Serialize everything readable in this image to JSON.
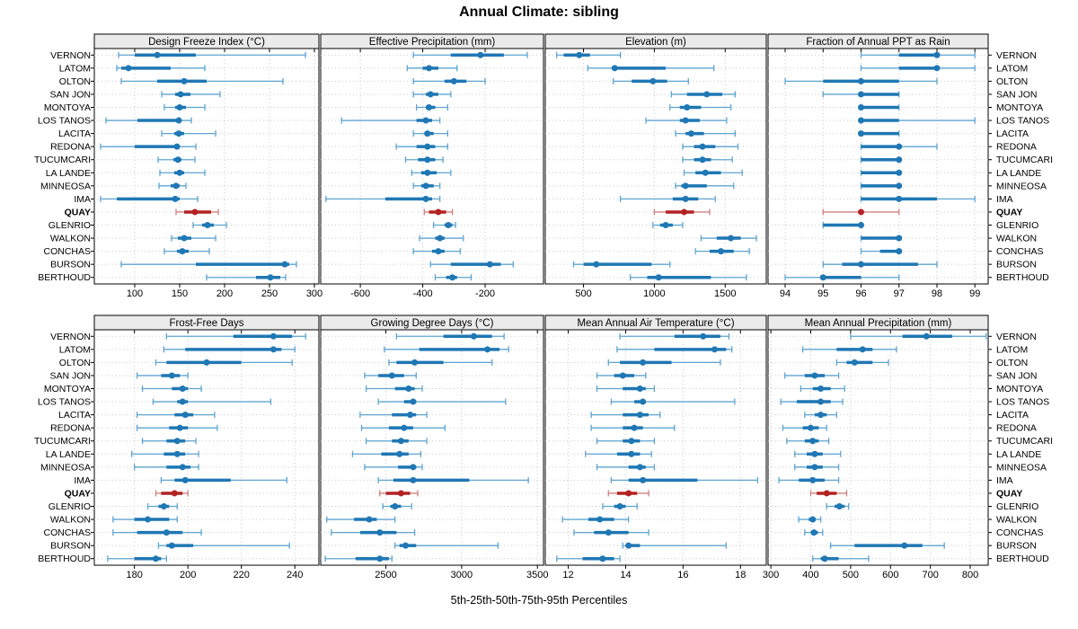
{
  "title": "Annual Climate: sibling",
  "caption": "5th-25th-50th-75th-95th Percentiles",
  "highlight_station": "QUAY",
  "colors": {
    "series": "#1f77b4",
    "series_light": "#5ea4d0",
    "highlight": "#b22222",
    "highlight_light": "#d08080",
    "grid": "#c9c9c9",
    "strip_bg": "#ebebeb",
    "border": "#000000",
    "text": "#000000",
    "background": "#ffffff"
  },
  "chart_data": {
    "type": "dotplot-interval",
    "percentiles": [
      "5th",
      "25th",
      "50th",
      "75th",
      "95th"
    ],
    "legend_position": "none",
    "grid": "dotted",
    "stations": [
      "VERNON",
      "LATOM",
      "OLTON",
      "SAN JON",
      "MONTOYA",
      "LOS TANOS",
      "LACITA",
      "REDONA",
      "TUCUMCARI",
      "LA LANDE",
      "MINNEOSA",
      "IMA",
      "QUAY",
      "GLENRIO",
      "WALKON",
      "CONCHAS",
      "BURSON",
      "BERTHOUD"
    ],
    "panels": [
      {
        "title": "Design Freeze Index (°C)",
        "row": 0,
        "col": 0,
        "xlim": [
          55,
          305
        ],
        "ticks": [
          100,
          150,
          200,
          250,
          300
        ],
        "values": [
          [
            82,
            100,
            125,
            168,
            290
          ],
          [
            80,
            85,
            93,
            140,
            178
          ],
          [
            85,
            125,
            155,
            180,
            265
          ],
          [
            130,
            145,
            151,
            162,
            195
          ],
          [
            133,
            145,
            150,
            157,
            178
          ],
          [
            68,
            103,
            149,
            152,
            163
          ],
          [
            130,
            144,
            149,
            155,
            190
          ],
          [
            62,
            100,
            147,
            150,
            168
          ],
          [
            126,
            143,
            148,
            152,
            167
          ],
          [
            128,
            144,
            150,
            155,
            178
          ],
          [
            127,
            140,
            146,
            150,
            157
          ],
          [
            62,
            80,
            145,
            150,
            170
          ],
          [
            146,
            155,
            167,
            185,
            193
          ],
          [
            165,
            175,
            181,
            188,
            202
          ],
          [
            141,
            148,
            155,
            163,
            190
          ],
          [
            133,
            147,
            153,
            160,
            183
          ],
          [
            85,
            168,
            267,
            272,
            280
          ],
          [
            180,
            235,
            251,
            262,
            268
          ]
        ]
      },
      {
        "title": "Effective Precipitation (mm)",
        "row": 0,
        "col": 1,
        "xlim": [
          -727,
          -13
        ],
        "ticks": [
          -600,
          -400,
          -200
        ],
        "values": [
          [
            -430,
            -310,
            -215,
            -140,
            -65
          ],
          [
            -450,
            -400,
            -380,
            -350,
            -290
          ],
          [
            -430,
            -330,
            -300,
            -260,
            -200
          ],
          [
            -430,
            -390,
            -375,
            -350,
            -310
          ],
          [
            -420,
            -390,
            -380,
            -360,
            -320
          ],
          [
            -660,
            -420,
            -390,
            -370,
            -345
          ],
          [
            -430,
            -395,
            -385,
            -365,
            -320
          ],
          [
            -485,
            -420,
            -385,
            -360,
            -320
          ],
          [
            -455,
            -415,
            -385,
            -360,
            -335
          ],
          [
            -435,
            -405,
            -385,
            -355,
            -310
          ],
          [
            -430,
            -405,
            -390,
            -365,
            -345
          ],
          [
            -710,
            -520,
            -390,
            -370,
            -345
          ],
          [
            -395,
            -380,
            -350,
            -325,
            -305
          ],
          [
            -365,
            -330,
            -318,
            -305,
            -295
          ],
          [
            -410,
            -360,
            -345,
            -330,
            -270
          ],
          [
            -430,
            -370,
            -350,
            -330,
            -280
          ],
          [
            -375,
            -310,
            -185,
            -150,
            -110
          ],
          [
            -360,
            -325,
            -305,
            -290,
            -245
          ]
        ]
      },
      {
        "title": "Elevation (m)",
        "row": 0,
        "col": 2,
        "xlim": [
          230,
          1790
        ],
        "ticks": [
          500,
          1000,
          1500
        ],
        "values": [
          [
            310,
            360,
            470,
            545,
            760
          ],
          [
            530,
            700,
            720,
            1080,
            1420
          ],
          [
            710,
            840,
            990,
            1090,
            1240
          ],
          [
            1120,
            1230,
            1370,
            1480,
            1570
          ],
          [
            1110,
            1180,
            1230,
            1330,
            1540
          ],
          [
            940,
            1180,
            1220,
            1320,
            1510
          ],
          [
            1150,
            1220,
            1260,
            1350,
            1570
          ],
          [
            1200,
            1280,
            1340,
            1430,
            1590
          ],
          [
            1200,
            1280,
            1340,
            1400,
            1550
          ],
          [
            1210,
            1290,
            1360,
            1470,
            1620
          ],
          [
            1150,
            1190,
            1220,
            1370,
            1560
          ],
          [
            760,
            1130,
            1220,
            1310,
            1430
          ],
          [
            1000,
            1080,
            1210,
            1280,
            1390
          ],
          [
            990,
            1040,
            1080,
            1130,
            1200
          ],
          [
            1330,
            1440,
            1540,
            1610,
            1720
          ],
          [
            1290,
            1390,
            1470,
            1560,
            1670
          ],
          [
            430,
            500,
            590,
            980,
            1110
          ],
          [
            830,
            950,
            1030,
            1400,
            1650
          ]
        ]
      },
      {
        "title": "Fraction of Annual PPT as Rain",
        "row": 0,
        "col": 3,
        "xlim": [
          93.55,
          99.35
        ],
        "ticks": [
          94,
          95,
          96,
          97,
          98,
          99
        ],
        "values": [
          [
            96,
            97,
            98,
            98,
            99
          ],
          [
            96,
            97,
            98,
            98,
            99
          ],
          [
            94,
            95,
            96,
            97,
            98
          ],
          [
            95,
            96,
            96,
            97,
            97
          ],
          [
            96,
            96,
            96,
            97,
            97
          ],
          [
            96,
            96,
            96,
            97,
            99
          ],
          [
            96,
            96,
            96,
            97,
            97
          ],
          [
            96,
            96,
            97,
            97,
            98
          ],
          [
            96,
            96,
            97,
            97,
            97
          ],
          [
            96,
            96,
            97,
            97,
            97
          ],
          [
            96,
            96,
            97,
            97,
            97
          ],
          [
            96,
            96,
            97,
            98,
            99
          ],
          [
            95,
            96,
            96,
            96,
            97
          ],
          [
            95,
            95,
            96,
            96,
            96
          ],
          [
            96,
            96,
            97,
            97,
            97
          ],
          [
            96,
            96.5,
            97,
            97,
            97
          ],
          [
            95,
            95.5,
            96,
            97.5,
            98
          ],
          [
            94,
            95,
            95,
            96,
            97
          ]
        ]
      },
      {
        "title": "Frost-Free Days",
        "row": 1,
        "col": 0,
        "xlim": [
          165,
          249
        ],
        "ticks": [
          180,
          200,
          220,
          240
        ],
        "values": [
          [
            192,
            217,
            232,
            239,
            244
          ],
          [
            191,
            199,
            232,
            235,
            240
          ],
          [
            188,
            192,
            207,
            220,
            239
          ],
          [
            181,
            190,
            194,
            197,
            200
          ],
          [
            183,
            194,
            198,
            200,
            205
          ],
          [
            187,
            196,
            198,
            200,
            231
          ],
          [
            181,
            195,
            199,
            202,
            210
          ],
          [
            181,
            193,
            197,
            200,
            211
          ],
          [
            183,
            192,
            196,
            199,
            203
          ],
          [
            179,
            191,
            196,
            199,
            204
          ],
          [
            180,
            192,
            198,
            201,
            204
          ],
          [
            190,
            195,
            199,
            216,
            237
          ],
          [
            188,
            190,
            195,
            198,
            200
          ],
          [
            185,
            189,
            191,
            193,
            196
          ],
          [
            172,
            180,
            185,
            193,
            196
          ],
          [
            172,
            181,
            192,
            198,
            205
          ],
          [
            189,
            192,
            194,
            202,
            238
          ],
          [
            170,
            180,
            188,
            190,
            192
          ]
        ]
      },
      {
        "title": "Growing Degree Days (°C)",
        "row": 1,
        "col": 1,
        "xlim": [
          2070,
          3540
        ],
        "ticks": [
          2500,
          3000,
          3500
        ],
        "values": [
          [
            2570,
            2880,
            3080,
            3200,
            3280
          ],
          [
            2490,
            2720,
            3170,
            3250,
            3310
          ],
          [
            2520,
            2570,
            2690,
            2880,
            3200
          ],
          [
            2360,
            2450,
            2540,
            2620,
            2700
          ],
          [
            2370,
            2560,
            2650,
            2690,
            2740
          ],
          [
            2450,
            2620,
            2680,
            2700,
            3290
          ],
          [
            2330,
            2540,
            2660,
            2700,
            2770
          ],
          [
            2340,
            2520,
            2620,
            2680,
            2890
          ],
          [
            2370,
            2540,
            2600,
            2650,
            2770
          ],
          [
            2280,
            2470,
            2590,
            2650,
            2730
          ],
          [
            2360,
            2580,
            2680,
            2700,
            2740
          ],
          [
            2450,
            2550,
            2680,
            3050,
            3440
          ],
          [
            2460,
            2500,
            2600,
            2660,
            2710
          ],
          [
            2480,
            2530,
            2560,
            2600,
            2670
          ],
          [
            2110,
            2290,
            2390,
            2440,
            2560
          ],
          [
            2140,
            2330,
            2460,
            2570,
            2690
          ],
          [
            2560,
            2590,
            2630,
            2700,
            3240
          ],
          [
            2100,
            2300,
            2460,
            2520,
            2540
          ]
        ]
      },
      {
        "title": "Mean Annual Air Temperature (°C)",
        "row": 1,
        "col": 2,
        "xlim": [
          11.2,
          18.9
        ],
        "ticks": [
          12,
          14,
          16,
          18
        ],
        "values": [
          [
            13.8,
            15.7,
            16.7,
            17.3,
            17.6
          ],
          [
            13.7,
            15.0,
            17.1,
            17.5,
            17.7
          ],
          [
            13.4,
            13.8,
            14.6,
            15.6,
            17.3
          ],
          [
            13.0,
            13.6,
            13.9,
            14.3,
            14.7
          ],
          [
            13.0,
            13.9,
            14.5,
            14.7,
            15.0
          ],
          [
            13.5,
            14.3,
            14.6,
            14.7,
            17.8
          ],
          [
            12.8,
            13.9,
            14.5,
            14.8,
            15.2
          ],
          [
            12.8,
            13.9,
            14.3,
            14.6,
            15.7
          ],
          [
            13.0,
            13.9,
            14.2,
            14.5,
            15.0
          ],
          [
            12.6,
            13.7,
            14.2,
            14.5,
            14.9
          ],
          [
            13.0,
            14.1,
            14.5,
            14.7,
            15.0
          ],
          [
            13.5,
            14.1,
            14.6,
            16.5,
            18.6
          ],
          [
            13.4,
            13.7,
            14.1,
            14.4,
            14.8
          ],
          [
            13.2,
            13.6,
            13.8,
            14.0,
            14.4
          ],
          [
            11.8,
            12.7,
            13.1,
            13.6,
            14.1
          ],
          [
            12.2,
            12.9,
            13.4,
            14.1,
            14.8
          ],
          [
            13.9,
            14.0,
            14.1,
            14.5,
            17.5
          ],
          [
            11.6,
            12.5,
            13.2,
            13.6,
            13.8
          ]
        ]
      },
      {
        "title": "Mean Annual Precipitation (mm)",
        "row": 1,
        "col": 3,
        "xlim": [
          293,
          845
        ],
        "ticks": [
          300,
          400,
          500,
          600,
          700,
          800
        ],
        "values": [
          [
            500,
            630,
            690,
            755,
            840
          ],
          [
            380,
            465,
            530,
            555,
            615
          ],
          [
            465,
            490,
            510,
            555,
            595
          ],
          [
            335,
            385,
            410,
            435,
            470
          ],
          [
            375,
            405,
            425,
            450,
            485
          ],
          [
            325,
            365,
            425,
            450,
            480
          ],
          [
            385,
            410,
            425,
            440,
            465
          ],
          [
            330,
            380,
            400,
            420,
            440
          ],
          [
            340,
            385,
            405,
            420,
            445
          ],
          [
            360,
            390,
            410,
            430,
            475
          ],
          [
            360,
            390,
            410,
            430,
            470
          ],
          [
            320,
            370,
            405,
            435,
            470
          ],
          [
            400,
            415,
            440,
            465,
            490
          ],
          [
            440,
            460,
            472,
            485,
            495
          ],
          [
            370,
            395,
            405,
            412,
            425
          ],
          [
            385,
            400,
            408,
            418,
            430
          ],
          [
            450,
            510,
            635,
            680,
            735
          ],
          [
            405,
            425,
            435,
            470,
            545
          ]
        ]
      }
    ]
  }
}
